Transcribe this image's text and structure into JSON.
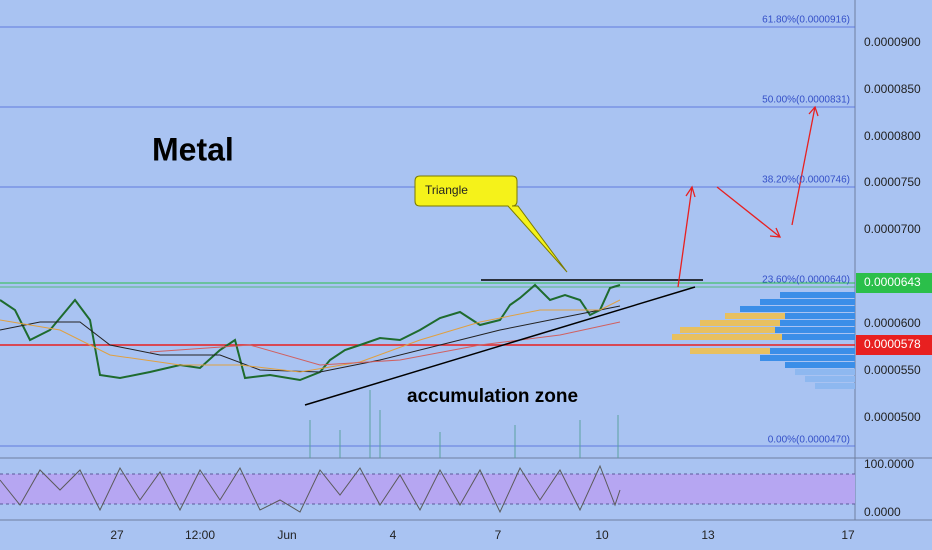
{
  "header": {
    "title": "Metal"
  },
  "annotations": {
    "callout": "Triangle",
    "zone": "accumulation zone"
  },
  "fib_levels": [
    "61.80%(0.0000916)",
    "50.00%(0.0000831)",
    "38.20%(0.0000746)",
    "23.60%(0.0000640)",
    "0.00%(0.0000470)"
  ],
  "price_axis": {
    "ticks": [
      "0.0000900",
      "0.0000850",
      "0.0000800",
      "0.0000750",
      "0.0000700",
      "0.0000600",
      "0.0000550",
      "0.0000500"
    ],
    "current": "0.0000643",
    "level": "0.0000578"
  },
  "oscillator_axis": {
    "ticks": [
      "100.0000",
      "0.0000"
    ]
  },
  "time_axis": {
    "ticks": [
      "27",
      "12:00",
      "Jun",
      "4",
      "7",
      "10",
      "13",
      "17"
    ]
  }
}
